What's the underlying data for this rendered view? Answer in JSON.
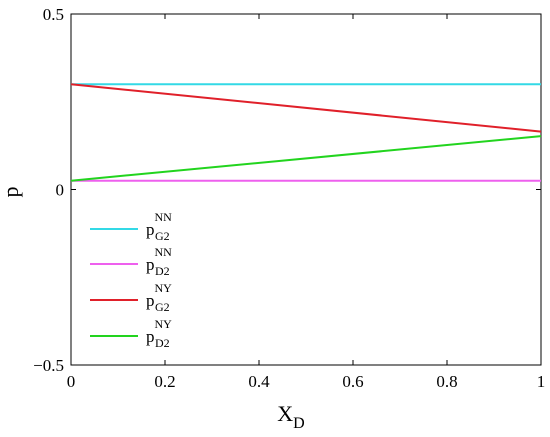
{
  "chart_data": {
    "type": "line",
    "xlabel": {
      "base": "X",
      "sub": "D"
    },
    "ylabel": "p",
    "xlim": [
      0,
      1
    ],
    "ylim": [
      -0.5,
      0.5
    ],
    "xticks": [
      0,
      0.2,
      0.4,
      0.6,
      0.8,
      1
    ],
    "xtick_labels": [
      "0",
      "0.2",
      "0.4",
      "0.6",
      "0.8",
      "1"
    ],
    "yticks": [
      -0.5,
      0,
      0.5
    ],
    "ytick_labels": [
      "−0.5",
      "0",
      "0.5"
    ],
    "grid": false,
    "legend_position": "lower-left",
    "series": [
      {
        "key": "pG2NN",
        "legend": {
          "base": "p",
          "sup": "NN",
          "sub": "G2"
        },
        "color": "#33d9e6",
        "x": [
          0,
          1
        ],
        "y": [
          0.3,
          0.3
        ]
      },
      {
        "key": "pD2NN",
        "legend": {
          "base": "p",
          "sup": "NN",
          "sub": "D2"
        },
        "color": "#ee60ee",
        "x": [
          0,
          1
        ],
        "y": [
          0.025,
          0.025
        ]
      },
      {
        "key": "pG2NY",
        "legend": {
          "base": "p",
          "sup": "NY",
          "sub": "G2"
        },
        "color": "#e0202a",
        "x": [
          0,
          1
        ],
        "y": [
          0.3,
          0.165
        ]
      },
      {
        "key": "pD2NY",
        "legend": {
          "base": "p",
          "sup": "NY",
          "sub": "D2"
        },
        "color": "#22d41e",
        "x": [
          0,
          1
        ],
        "y": [
          0.025,
          0.152
        ]
      }
    ]
  }
}
